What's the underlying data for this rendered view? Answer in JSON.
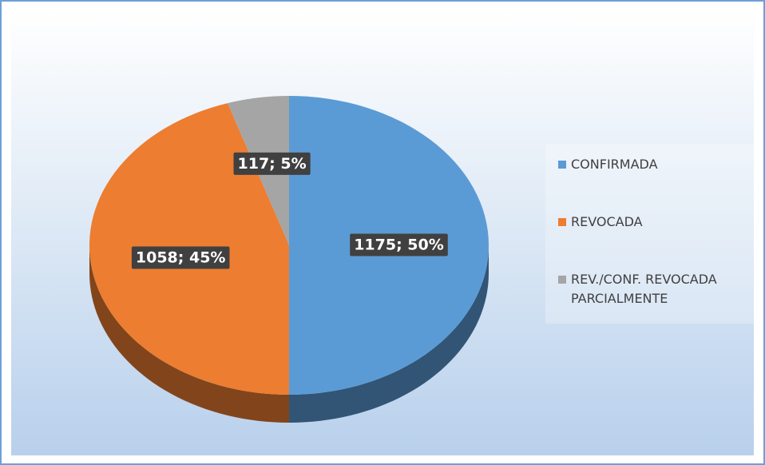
{
  "chart_data": {
    "type": "pie",
    "categories": [
      "CONFIRMADA",
      "REVOCADA",
      "REV./CONF. REVOCADA PARCIALMENTE"
    ],
    "values": [
      1175,
      1058,
      117
    ],
    "value_labels": [
      "1175; 50%",
      "1058; 45%",
      "117; 5%"
    ],
    "colors": [
      "#5b9bd5",
      "#ed7d31",
      "#a5a5a5"
    ],
    "legend": "right"
  }
}
